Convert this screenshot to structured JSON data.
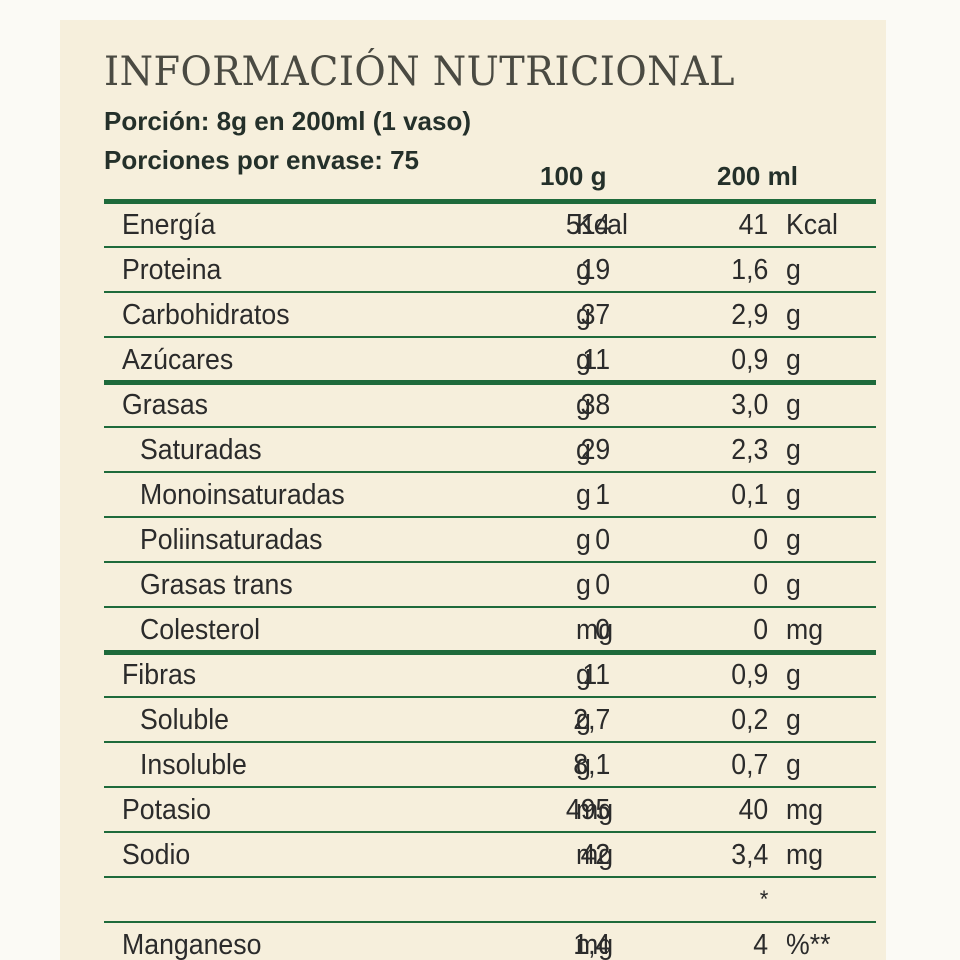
{
  "label": {
    "title": "INFORMACIÓN NUTRICIONAL",
    "serving": "Porción: 8g en 200ml (1 vaso)",
    "servings_per_container": "Porciones por envase: 75",
    "col_100g": "100 g",
    "col_200ml": "200 ml"
  },
  "rows": [
    {
      "name": "Energía",
      "v100": "514",
      "u100": "Kcal",
      "v200": "41",
      "u200": "Kcal"
    },
    {
      "name": "Proteina",
      "v100": "19",
      "u100": "g",
      "v200": "1,6",
      "u200": "g"
    },
    {
      "name": "Carbohidratos",
      "v100": "37",
      "u100": "g",
      "v200": "2,9",
      "u200": "g"
    },
    {
      "name": "Azúcares",
      "v100": "11",
      "u100": "g",
      "v200": "0,9",
      "u200": "g"
    },
    {
      "name": "Grasas",
      "v100": "38",
      "u100": "g",
      "v200": "3,0",
      "u200": "g"
    },
    {
      "name": "Saturadas",
      "v100": "29",
      "u100": "g",
      "v200": "2,3",
      "u200": "g"
    },
    {
      "name": "Monoinsaturadas",
      "v100": "1",
      "u100": "g",
      "v200": "0,1",
      "u200": "g"
    },
    {
      "name": "Poliinsaturadas",
      "v100": "0",
      "u100": "g",
      "v200": "0",
      "u200": "g"
    },
    {
      "name": "Grasas trans",
      "v100": "0",
      "u100": "g",
      "v200": "0",
      "u200": "g"
    },
    {
      "name": "Colesterol",
      "v100": "0",
      "u100": "mg",
      "v200": "0",
      "u200": "mg"
    },
    {
      "name": "Fibras",
      "v100": "11",
      "u100": "g",
      "v200": "0,9",
      "u200": "g"
    },
    {
      "name": "Soluble",
      "v100": "2,7",
      "u100": "g",
      "v200": "0,2",
      "u200": "g"
    },
    {
      "name": "Insoluble",
      "v100": "8,1",
      "u100": "g",
      "v200": "0,7",
      "u200": "g"
    },
    {
      "name": "Potasio",
      "v100": "495",
      "u100": "mg",
      "v200": "40",
      "u200": "mg"
    },
    {
      "name": "Sodio",
      "v100": "42",
      "u100": "mg",
      "v200": "3,4",
      "u200": "mg"
    },
    {
      "name": "",
      "v100": "",
      "u100": "",
      "v200": "*",
      "u200": ""
    },
    {
      "name": "Manganeso",
      "v100": "1,4",
      "u100": "mg",
      "v200": "4",
      "u200": "%**"
    }
  ],
  "colors": {
    "rule": "#1e6a3b",
    "background": "#f6efdc",
    "text": "#2b2b2b"
  }
}
